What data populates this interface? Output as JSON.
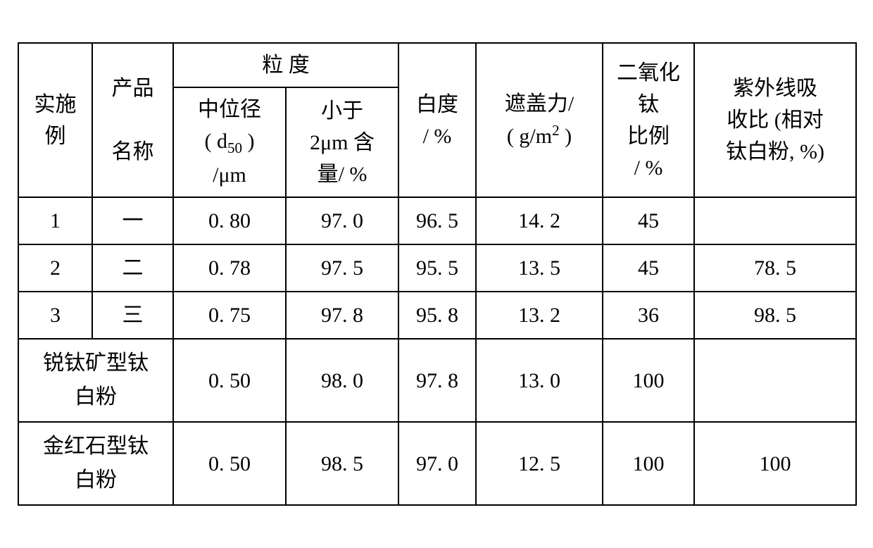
{
  "table": {
    "background_color": "#ffffff",
    "border_color": "#000000",
    "text_color": "#000000",
    "base_fontsize_pt": 22,
    "font_family": "SimSun",
    "header": {
      "col_example": "实施\n例",
      "col_product_name_top": "产品",
      "col_product_name_bottom": "名称",
      "col_particle_size": "粒 度",
      "col_d50_line1": "中位径",
      "col_d50_line2_prefix": "( d",
      "col_d50_line2_sub": "50",
      "col_d50_line2_suffix": " )",
      "col_d50_line3": "/μm",
      "col_lt2um_line1": "小于",
      "col_lt2um_line2": "2μm 含",
      "col_lt2um_line3": "量/ %",
      "col_whiteness": "白度\n/ %",
      "col_hiding_power_line1": "遮盖力/",
      "col_hiding_power_line2_prefix": "( g/m",
      "col_hiding_power_line2_sup": "2",
      "col_hiding_power_line2_suffix": " )",
      "col_tio2_ratio": "二氧化\n钛\n比例\n/ %",
      "col_uv_ratio": "紫外线吸\n收比 (相对\n钛白粉, %)"
    },
    "rows": [
      {
        "example": "1",
        "name": "一",
        "d50": "0. 80",
        "lt2um": "97. 0",
        "whiteness": "96. 5",
        "hiding": "14. 2",
        "tio2": "45",
        "uv": ""
      },
      {
        "example": "2",
        "name": "二",
        "d50": "0. 78",
        "lt2um": "97. 5",
        "whiteness": "95. 5",
        "hiding": "13. 5",
        "tio2": "45",
        "uv": "78. 5"
      },
      {
        "example": "3",
        "name": "三",
        "d50": "0. 75",
        "lt2um": "97. 8",
        "whiteness": "95. 8",
        "hiding": "13. 2",
        "tio2": "36",
        "uv": "98. 5"
      }
    ],
    "merged_rows": [
      {
        "name": "锐钛矿型钛\n白粉",
        "d50": "0. 50",
        "lt2um": "98. 0",
        "whiteness": "97. 8",
        "hiding": "13. 0",
        "tio2": "100",
        "uv": ""
      },
      {
        "name": "金红石型钛\n白粉",
        "d50": "0. 50",
        "lt2um": "98. 5",
        "whiteness": "97. 0",
        "hiding": "12. 5",
        "tio2": "100",
        "uv": "100"
      }
    ]
  }
}
